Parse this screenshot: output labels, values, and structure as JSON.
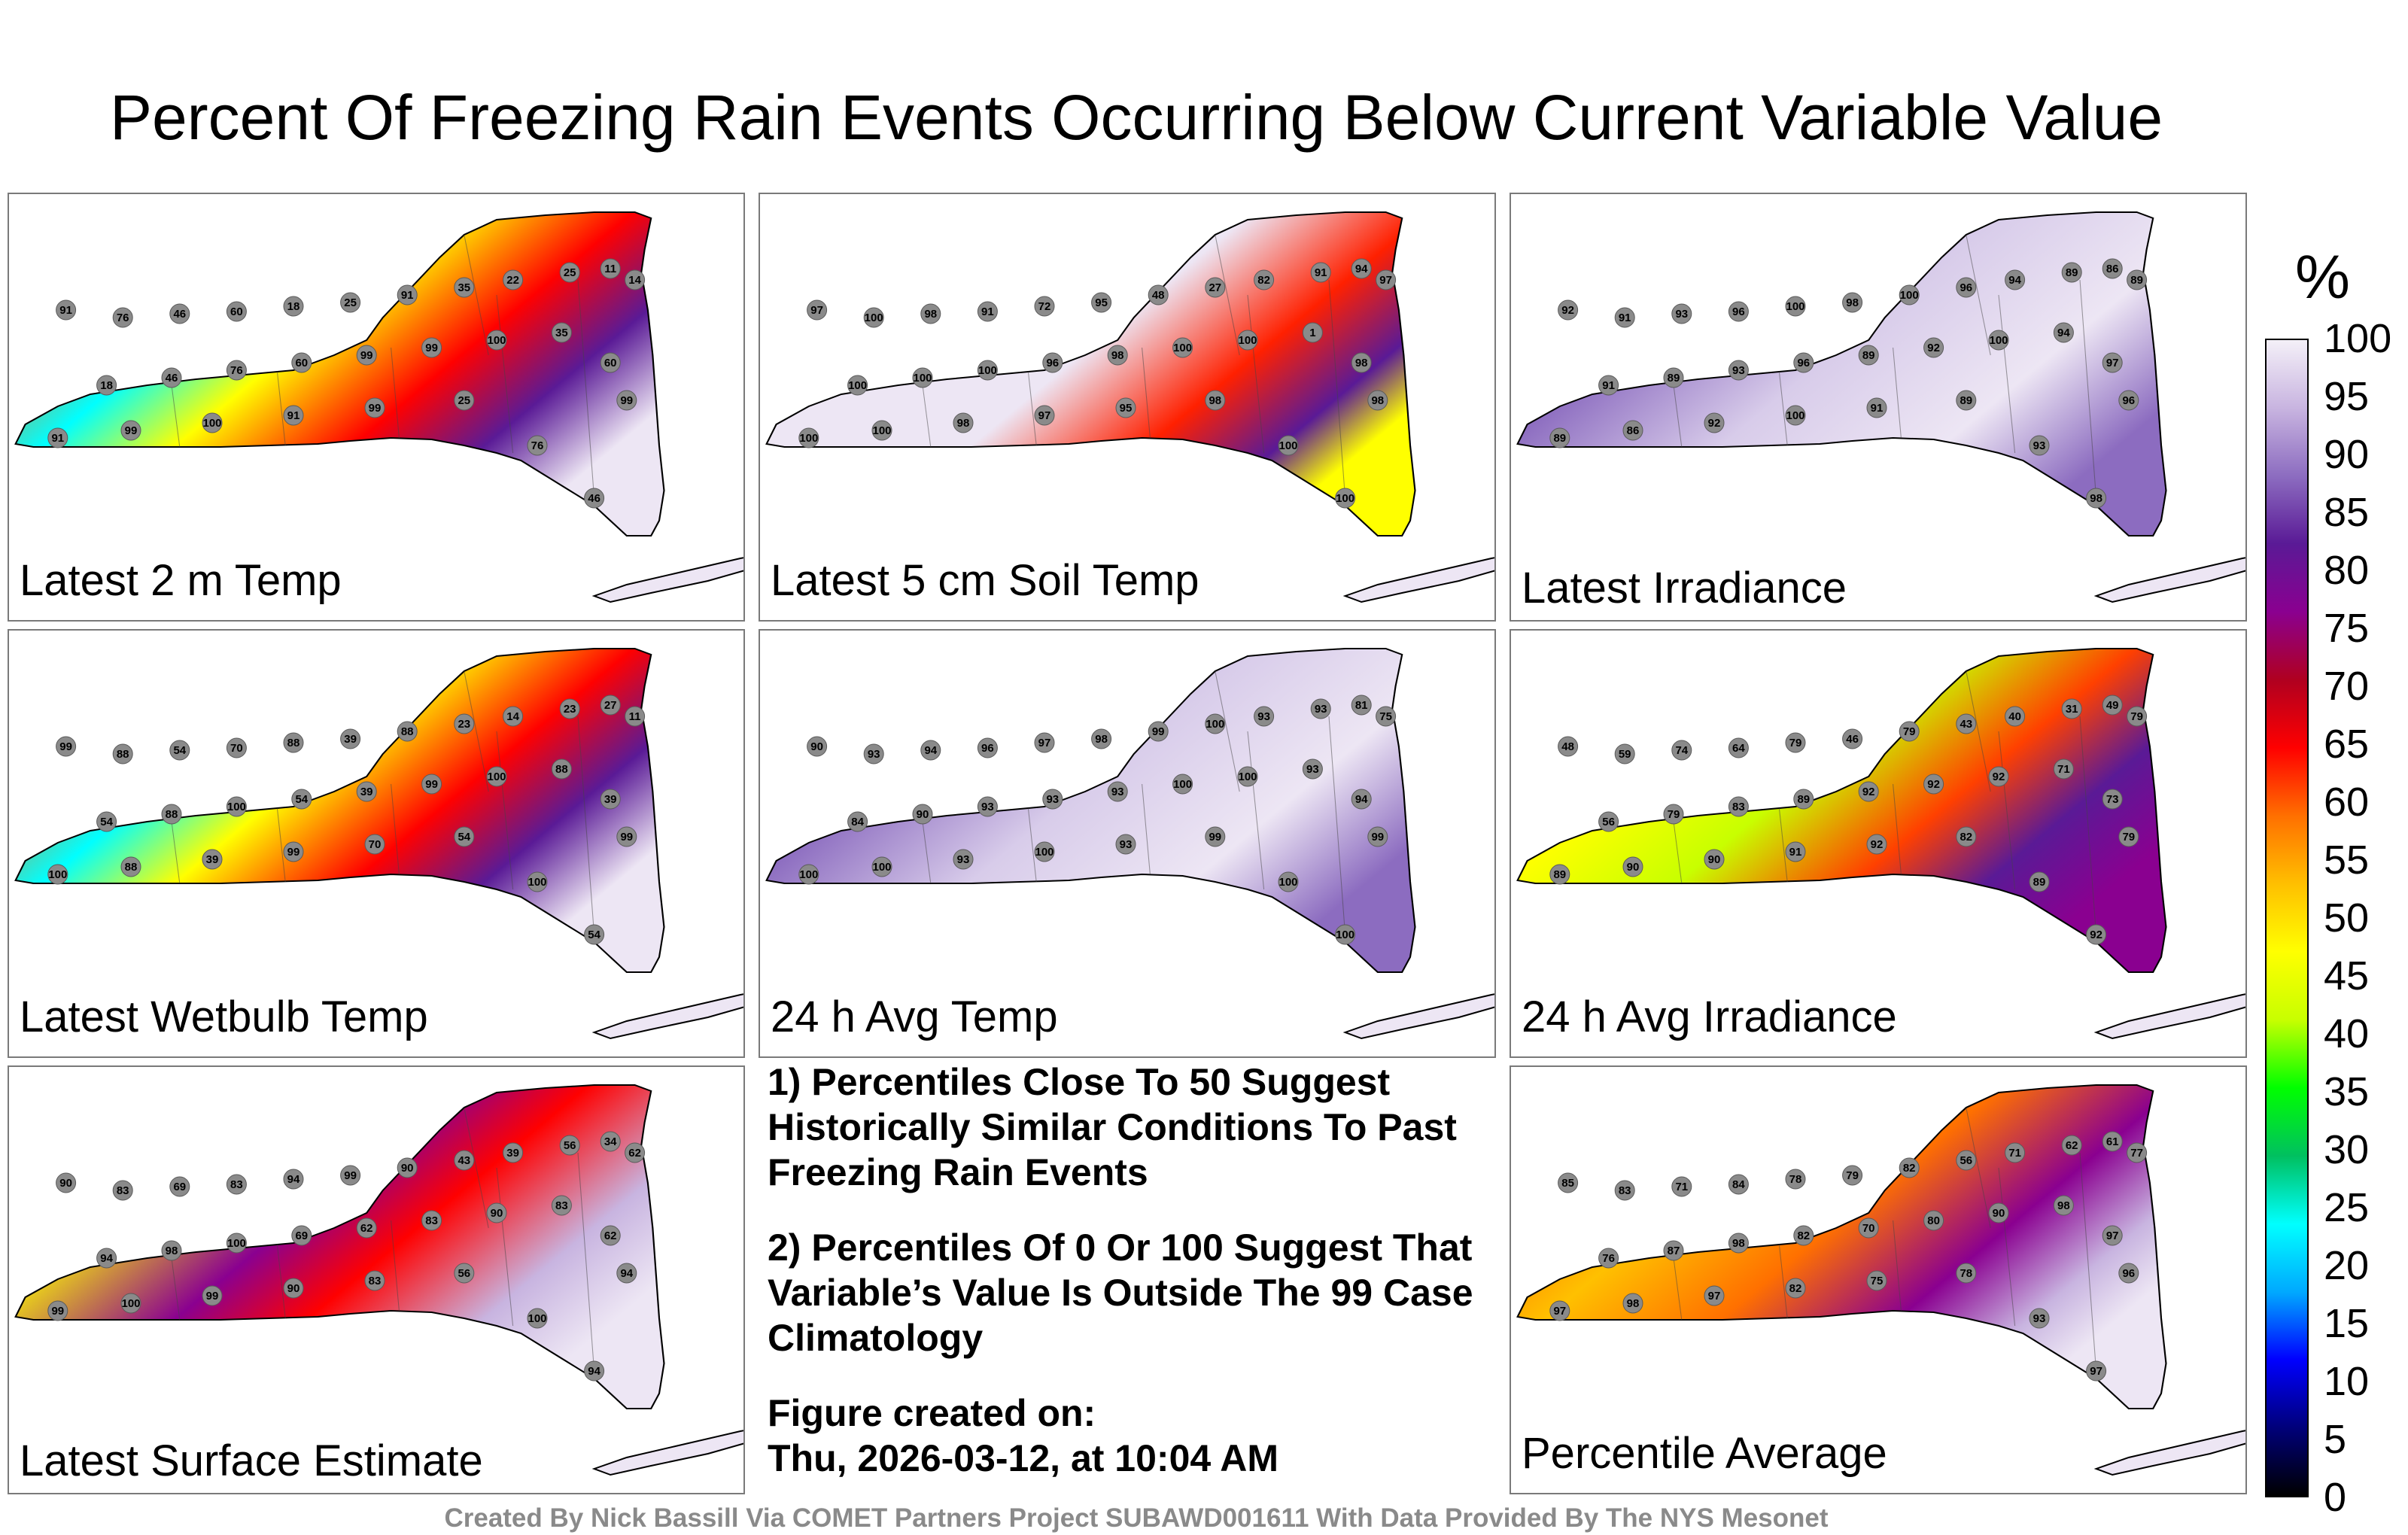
{
  "title": "Percent Of Freezing Rain Events Occurring Below Current Variable Value",
  "panels": [
    {
      "label": "Latest 2 m Temp",
      "scheme": "mixed",
      "values": [
        "91",
        "76",
        "46",
        "60",
        "18",
        "25",
        "91",
        "35",
        "22",
        "25",
        "11",
        "14",
        "18",
        "46",
        "76",
        "60",
        "99",
        "99",
        "100",
        "35",
        "60",
        "99",
        "91",
        "99",
        "100",
        "91",
        "99",
        "25",
        "76",
        "46"
      ]
    },
    {
      "label": "Latest 5 cm Soil Temp",
      "scheme": "soil",
      "values": [
        "97",
        "100",
        "98",
        "91",
        "72",
        "95",
        "48",
        "27",
        "82",
        "91",
        "94",
        "97",
        "100",
        "100",
        "100",
        "96",
        "98",
        "100",
        "100",
        "1",
        "98",
        "98",
        "100",
        "100",
        "98",
        "97",
        "95",
        "98",
        "100",
        "100"
      ]
    },
    {
      "label": "Latest Irradiance",
      "scheme": "high",
      "values": [
        "92",
        "91",
        "93",
        "96",
        "100",
        "98",
        "100",
        "96",
        "94",
        "89",
        "86",
        "89",
        "91",
        "89",
        "93",
        "96",
        "89",
        "92",
        "100",
        "94",
        "97",
        "96",
        "89",
        "86",
        "92",
        "100",
        "91",
        "89",
        "93",
        "98"
      ]
    },
    {
      "label": "Latest Wetbulb Temp",
      "scheme": "mixed",
      "values": [
        "99",
        "88",
        "54",
        "70",
        "88",
        "39",
        "88",
        "23",
        "14",
        "23",
        "27",
        "11",
        "54",
        "88",
        "100",
        "54",
        "39",
        "99",
        "100",
        "88",
        "39",
        "99",
        "100",
        "88",
        "39",
        "99",
        "70",
        "54",
        "100",
        "54"
      ]
    },
    {
      "label": "24 h Avg Temp",
      "scheme": "high",
      "values": [
        "90",
        "93",
        "94",
        "96",
        "97",
        "98",
        "99",
        "100",
        "93",
        "93",
        "81",
        "75",
        "84",
        "90",
        "93",
        "93",
        "93",
        "100",
        "100",
        "93",
        "94",
        "99",
        "100",
        "100",
        "93",
        "100",
        "93",
        "99",
        "100",
        "100"
      ]
    },
    {
      "label": "24 h Avg Irradiance",
      "scheme": "mid",
      "values": [
        "48",
        "59",
        "74",
        "64",
        "79",
        "46",
        "79",
        "43",
        "40",
        "31",
        "49",
        "79",
        "56",
        "79",
        "83",
        "89",
        "92",
        "92",
        "92",
        "71",
        "73",
        "79",
        "89",
        "90",
        "90",
        "91",
        "92",
        "82",
        "89",
        "92"
      ]
    },
    {
      "label": "Latest Surface Estimate",
      "scheme": "mid2",
      "values": [
        "90",
        "83",
        "69",
        "83",
        "94",
        "99",
        "90",
        "43",
        "39",
        "56",
        "34",
        "62",
        "94",
        "98",
        "100",
        "69",
        "62",
        "83",
        "90",
        "83",
        "62",
        "94",
        "99",
        "100",
        "99",
        "90",
        "83",
        "56",
        "100",
        "94"
      ]
    },
    {
      "label": "Percentile Average",
      "scheme": "avg",
      "values": [
        "85",
        "83",
        "71",
        "84",
        "78",
        "79",
        "82",
        "56",
        "71",
        "62",
        "61",
        "77",
        "76",
        "87",
        "98",
        "82",
        "70",
        "80",
        "90",
        "98",
        "97",
        "96",
        "97",
        "98",
        "97",
        "82",
        "75",
        "78",
        "93",
        "97"
      ]
    }
  ],
  "notes": [
    "1) Percentiles Close To 50 Suggest Historically Similar Conditions To Past Freezing Rain Events",
    "2) Percentiles Of 0 Or 100 Suggest That Variable’s Value Is Outside The 99 Case Climatology"
  ],
  "figure_created_label": "Figure created on:",
  "figure_created_value": "Thu, 2026-03-12, at 10:04 AM",
  "credit": "Created By Nick Bassill Via COMET Partners Project SUBAWD001611 With Data Provided By The NYS Mesonet",
  "chart_data": {
    "type": "heatmap",
    "title": "Percent Of Freezing Rain Events Occurring Below Current Variable Value",
    "colorbar_unit": "%",
    "colorbar_range": [
      0,
      100
    ],
    "colorbar_ticks": [
      "100",
      "95",
      "90",
      "85",
      "80",
      "75",
      "70",
      "65",
      "60",
      "55",
      "50",
      "45",
      "40",
      "35",
      "30",
      "25",
      "20",
      "15",
      "10",
      "5",
      "0"
    ],
    "colorbar_stops": [
      "#000000",
      "#00007a",
      "#0000ff",
      "#00a8ff",
      "#00ffff",
      "#00c060",
      "#00ff00",
      "#c8ff00",
      "#ffff00",
      "#ffc000",
      "#ff7000",
      "#ff0000",
      "#b00020",
      "#8a0090",
      "#5a1a96",
      "#8c6cc0",
      "#c8b4e0",
      "#f4f0f8"
    ]
  }
}
